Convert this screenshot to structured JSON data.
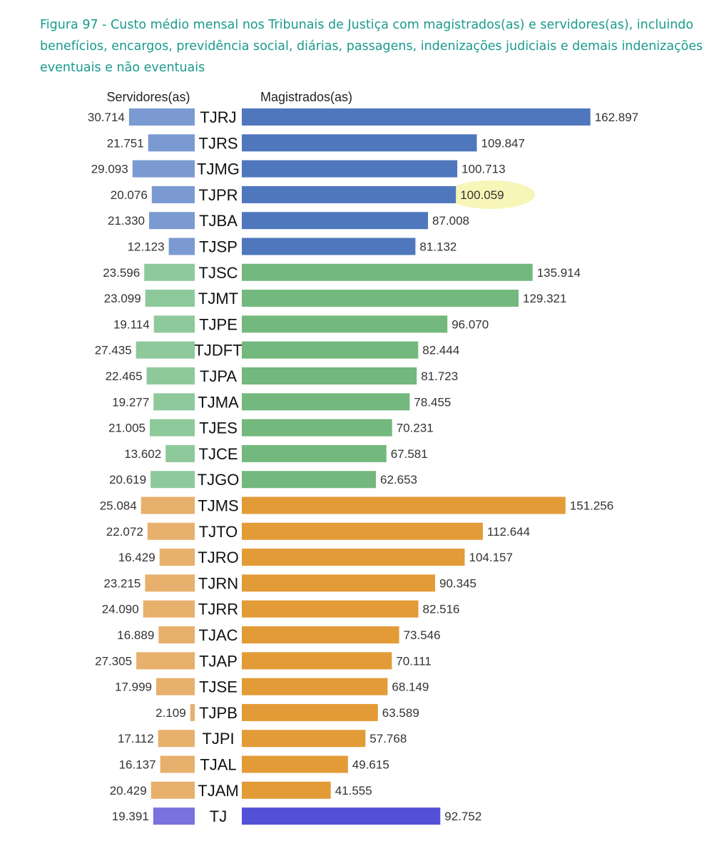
{
  "page": {
    "title": "Figura 97 - Custo médio mensal nos Tribunais de Justiça com magistrados(as) e servidores(as), incluindo benefícios, encargos, previdência social, diárias, passagens, indenizações judiciais e demais indenizações eventuais e não eventuais"
  },
  "colors": {
    "group_1_left": "#7b9ad1",
    "group_1_right": "#4f77bd",
    "group_2_left": "#8ec99b",
    "group_2_right": "#73b87c",
    "group_3_left": "#e7b06c",
    "group_3_right": "#e39b37",
    "total_left": "#7872de",
    "total_right": "#5450d6",
    "highlight": "#f8f4b4"
  },
  "chart_data": {
    "type": "bar",
    "left_header": "Servidores(as)",
    "right_header": "Magistrados(as)",
    "highlighted_value": "100.059",
    "categories": [
      "TJRJ",
      "TJRS",
      "TJMG",
      "TJPR",
      "TJBA",
      "TJSP",
      "TJSC",
      "TJMT",
      "TJPE",
      "TJDFT",
      "TJPA",
      "TJMA",
      "TJES",
      "TJCE",
      "TJGO",
      "TJMS",
      "TJTO",
      "TJRO",
      "TJRN",
      "TJRR",
      "TJAC",
      "TJAP",
      "TJSE",
      "TJPB",
      "TJPI",
      "TJAL",
      "TJAM",
      "TJ"
    ],
    "groups": [
      "group_1",
      "group_1",
      "group_1",
      "group_1",
      "group_1",
      "group_1",
      "group_2",
      "group_2",
      "group_2",
      "group_2",
      "group_2",
      "group_2",
      "group_2",
      "group_2",
      "group_2",
      "group_3",
      "group_3",
      "group_3",
      "group_3",
      "group_3",
      "group_3",
      "group_3",
      "group_3",
      "group_3",
      "group_3",
      "group_3",
      "group_3",
      "total"
    ],
    "series": [
      {
        "name": "Servidores(as)",
        "values": [
          30714,
          21751,
          29093,
          20076,
          21330,
          12123,
          23596,
          23099,
          19114,
          27435,
          22465,
          19277,
          21005,
          13602,
          20619,
          25084,
          22072,
          16429,
          23215,
          24090,
          16889,
          27305,
          17999,
          2109,
          17112,
          16137,
          20429,
          19391
        ],
        "labels": [
          "30.714",
          "21.751",
          "29.093",
          "20.076",
          "21.330",
          "12.123",
          "23.596",
          "23.099",
          "19.114",
          "27.435",
          "22.465",
          "19.277",
          "21.005",
          "13.602",
          "20.619",
          "25.084",
          "22.072",
          "16.429",
          "23.215",
          "24.090",
          "16.889",
          "27.305",
          "17.999",
          "2.109",
          "17.112",
          "16.137",
          "20.429",
          "19.391"
        ]
      },
      {
        "name": "Magistrados(as)",
        "values": [
          162897,
          109847,
          100713,
          100059,
          87008,
          81132,
          135914,
          129321,
          96070,
          82444,
          81723,
          78455,
          70231,
          67581,
          62653,
          151256,
          112644,
          104157,
          90345,
          82516,
          73546,
          70111,
          68149,
          63589,
          57768,
          49615,
          41555,
          92752
        ],
        "labels": [
          "162.897",
          "109.847",
          "100.713",
          "100.059",
          "87.008",
          "81.132",
          "135.914",
          "129.321",
          "96.070",
          "82.444",
          "81.723",
          "78.455",
          "70.231",
          "67.581",
          "62.653",
          "151.256",
          "112.644",
          "104.157",
          "90.345",
          "82.516",
          "73.546",
          "70.111",
          "68.149",
          "63.589",
          "57.768",
          "49.615",
          "41.555",
          "92.752"
        ]
      }
    ],
    "grid": false,
    "legend": "none"
  }
}
